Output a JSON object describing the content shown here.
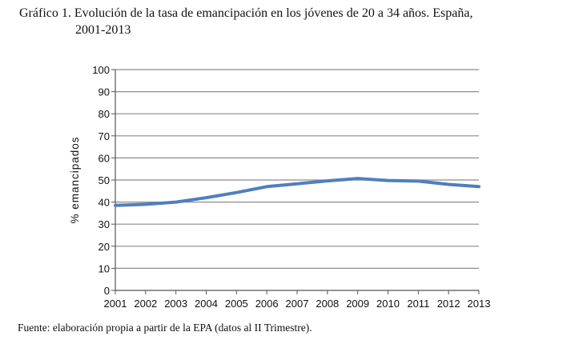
{
  "title_line1": "Gráfico 1. Evolución de la tasa de emancipación en los jóvenes de 20 a 34 años. España,",
  "title_line2": "2001-2013",
  "source": "Fuente: elaboración propia a partir de la EPA (datos al II Trimestre).",
  "chart_data": {
    "type": "line",
    "title": "",
    "xlabel": "",
    "ylabel": "% emancipados",
    "ylim": [
      0,
      100
    ],
    "yticks": [
      0,
      10,
      20,
      30,
      40,
      50,
      60,
      70,
      80,
      90,
      100
    ],
    "grid": "horizontal",
    "legend": "none",
    "categories": [
      "2001",
      "2002",
      "2003",
      "2004",
      "2005",
      "2006",
      "2007",
      "2008",
      "2009",
      "2010",
      "2011",
      "2012",
      "2013"
    ],
    "series": [
      {
        "values": [
          38.5,
          39.0,
          40.0,
          42.0,
          44.3,
          47.0,
          48.3,
          49.6,
          50.7,
          49.8,
          49.5,
          48.0,
          47.0
        ],
        "color": "#4f7fbe"
      }
    ]
  }
}
